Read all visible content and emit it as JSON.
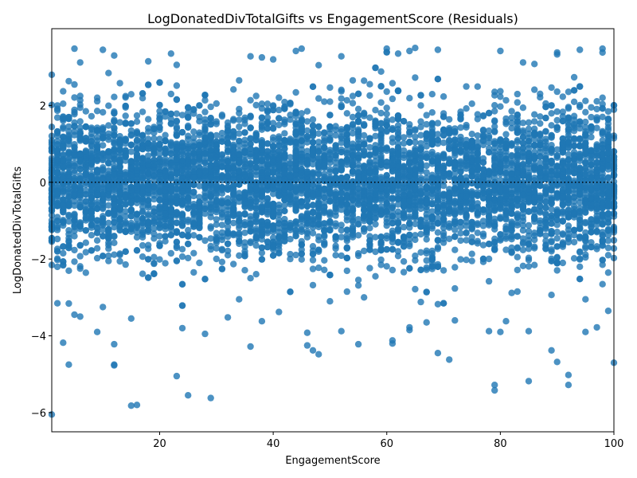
{
  "chart_data": {
    "type": "scatter",
    "title": "LogDonatedDivTotalGifts vs EngagementScore (Residuals)",
    "xlabel": "EngagementScore",
    "ylabel": "LogDonatedDivTotalGifts",
    "xlim": [
      1,
      100
    ],
    "ylim": [
      -6.5,
      4.0
    ],
    "xticks": [
      20,
      40,
      60,
      80,
      100
    ],
    "yticks": [
      -6,
      -4,
      -2,
      0,
      2
    ],
    "reference_line": {
      "y": 0,
      "style": "dotted",
      "color": "#000000"
    },
    "grid": false,
    "legend": "none",
    "point_color": "#1f77b4",
    "point_alpha": 0.8,
    "distribution": {
      "x_values": "integers 1-100",
      "core_band": [
        -1.0,
        1.0
      ],
      "typical_range": [
        -2.5,
        3.5
      ]
    },
    "series": [
      {
        "points": [
          [
            1,
            -6.05
          ],
          [
            15,
            -5.82
          ],
          [
            16,
            -5.8
          ],
          [
            25,
            -5.55
          ],
          [
            29,
            -5.62
          ],
          [
            23,
            -5.05
          ],
          [
            79,
            -5.28
          ],
          [
            79,
            -5.42
          ],
          [
            85,
            -5.18
          ],
          [
            92,
            -5.02
          ],
          [
            92,
            -5.28
          ],
          [
            4,
            -4.75
          ],
          [
            12,
            -4.77
          ],
          [
            12,
            -4.75
          ],
          [
            3,
            -4.18
          ],
          [
            12,
            -4.22
          ],
          [
            36,
            -4.28
          ],
          [
            46,
            -4.25
          ],
          [
            47,
            -4.38
          ],
          [
            48,
            -4.48
          ],
          [
            55,
            -4.22
          ],
          [
            61,
            -4.12
          ],
          [
            61,
            -4.2
          ],
          [
            69,
            -4.45
          ],
          [
            71,
            -4.62
          ],
          [
            89,
            -4.38
          ],
          [
            90,
            -4.68
          ],
          [
            100,
            -4.7
          ],
          [
            9,
            -3.9
          ],
          [
            24,
            -3.8
          ],
          [
            28,
            -3.95
          ],
          [
            46,
            -3.92
          ],
          [
            52,
            -3.88
          ],
          [
            64,
            -3.78
          ],
          [
            64,
            -3.85
          ],
          [
            67,
            -3.65
          ],
          [
            78,
            -3.88
          ],
          [
            80,
            -3.9
          ],
          [
            85,
            -3.88
          ],
          [
            95,
            -3.9
          ],
          [
            97,
            -3.78
          ],
          [
            5,
            -3.45
          ],
          [
            6,
            -3.5
          ],
          [
            10,
            -3.25
          ],
          [
            15,
            -3.55
          ],
          [
            32,
            -3.52
          ],
          [
            38,
            -3.62
          ],
          [
            41,
            -3.38
          ],
          [
            50,
            -3.1
          ],
          [
            56,
            -3.0
          ],
          [
            66,
            -3.12
          ],
          [
            72,
            -3.6
          ],
          [
            81,
            -3.62
          ],
          [
            95,
            -3.05
          ],
          [
            99,
            -3.35
          ],
          [
            1,
            2.8
          ],
          [
            5,
            3.48
          ],
          [
            6,
            3.12
          ],
          [
            10,
            3.45
          ],
          [
            12,
            3.3
          ],
          [
            18,
            3.15
          ],
          [
            22,
            3.35
          ],
          [
            36,
            3.28
          ],
          [
            38,
            3.25
          ],
          [
            40,
            3.2
          ],
          [
            44,
            3.42
          ],
          [
            45,
            3.48
          ],
          [
            48,
            3.05
          ],
          [
            52,
            3.28
          ],
          [
            60,
            3.48
          ],
          [
            62,
            3.35
          ],
          [
            64,
            3.42
          ],
          [
            69,
            3.45
          ],
          [
            80,
            3.42
          ],
          [
            84,
            3.12
          ],
          [
            86,
            3.08
          ],
          [
            90,
            3.38
          ],
          [
            94,
            3.45
          ],
          [
            98,
            3.48
          ],
          [
            98,
            3.38
          ],
          [
            2,
            2.0
          ],
          [
            8,
            1.72
          ],
          [
            14,
            1.95
          ],
          [
            20,
            1.85
          ],
          [
            26,
            1.9
          ],
          [
            30,
            2.05
          ],
          [
            34,
            1.8
          ],
          [
            42,
            1.95
          ],
          [
            50,
            2.1
          ],
          [
            58,
            1.88
          ],
          [
            66,
            2.0
          ],
          [
            74,
            1.92
          ],
          [
            82,
            1.85
          ],
          [
            88,
            2.05
          ],
          [
            96,
            1.95
          ],
          [
            3,
            -1.85
          ],
          [
            11,
            -2.05
          ],
          [
            19,
            -1.95
          ],
          [
            27,
            -2.1
          ],
          [
            35,
            -1.8
          ],
          [
            43,
            -2.0
          ],
          [
            51,
            -1.9
          ],
          [
            59,
            -2.15
          ],
          [
            67,
            -1.85
          ],
          [
            75,
            -2.05
          ],
          [
            83,
            -1.95
          ],
          [
            91,
            -2.1
          ],
          [
            99,
            -1.9
          ],
          [
            7,
            0.55
          ],
          [
            13,
            -0.45
          ],
          [
            21,
            0.3
          ],
          [
            31,
            -0.2
          ],
          [
            39,
            0.65
          ],
          [
            47,
            -0.6
          ],
          [
            57,
            0.15
          ],
          [
            63,
            -0.35
          ],
          [
            73,
            0.5
          ],
          [
            79,
            -0.55
          ],
          [
            87,
            0.25
          ],
          [
            93,
            -0.4
          ]
        ]
      }
    ]
  }
}
